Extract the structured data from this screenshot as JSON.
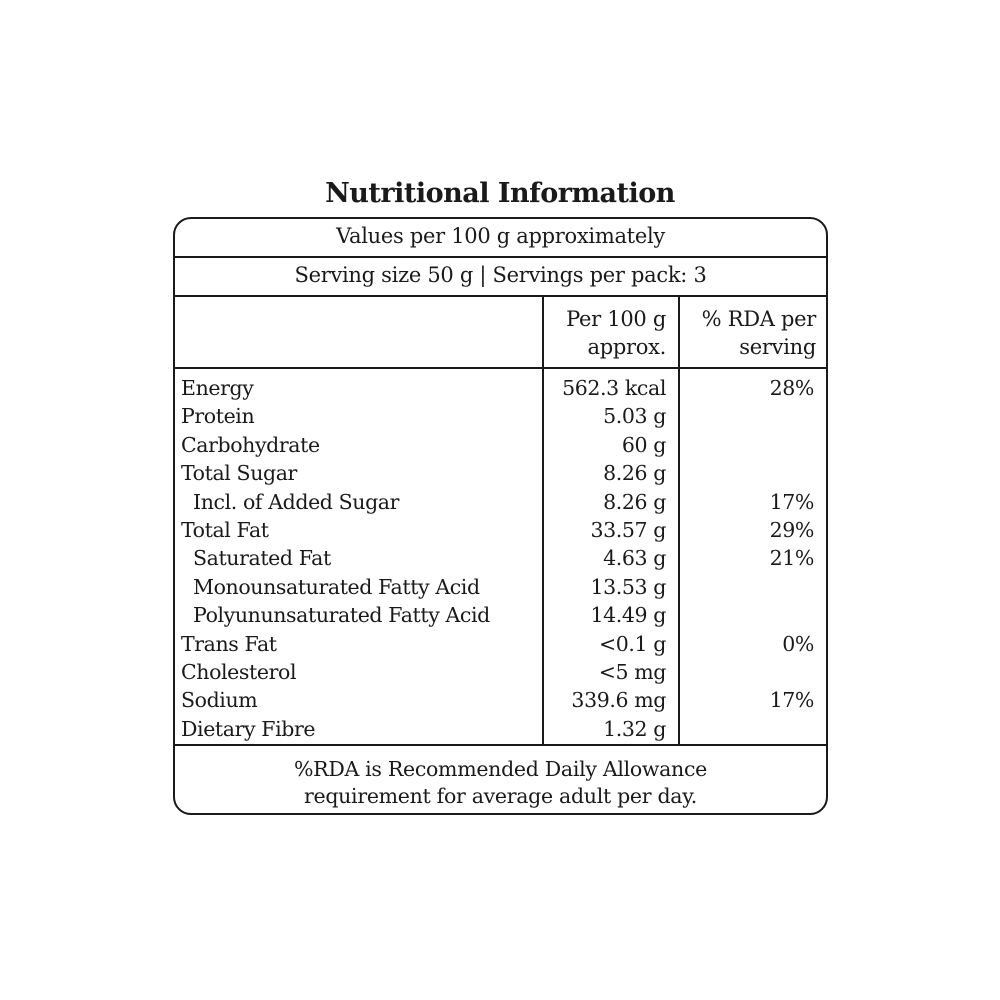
{
  "title": "Nutritional Information",
  "values_note": "Values per 100 g approximately",
  "serving_note": "Serving size 50 g | Servings per pack: 3",
  "columns": {
    "per100_line1": "Per 100 g",
    "per100_line2": "approx.",
    "rda_line1": "% RDA per",
    "rda_line2": "serving"
  },
  "rows": [
    {
      "name": "Energy",
      "value": "562.3 kcal",
      "rda": "28%",
      "indent": false
    },
    {
      "name": "Protein",
      "value": "5.03 g",
      "rda": "",
      "indent": false
    },
    {
      "name": "Carbohydrate",
      "value": "60 g",
      "rda": "",
      "indent": false
    },
    {
      "name": "Total Sugar",
      "value": "8.26 g",
      "rda": "",
      "indent": false
    },
    {
      "name": "Incl. of Added Sugar",
      "value": "8.26 g",
      "rda": "17%",
      "indent": true
    },
    {
      "name": "Total Fat",
      "value": "33.57 g",
      "rda": "29%",
      "indent": false
    },
    {
      "name": "Saturated Fat",
      "value": "4.63 g",
      "rda": "21%",
      "indent": true
    },
    {
      "name": "Monounsaturated Fatty Acid",
      "value": "13.53 g",
      "rda": "",
      "indent": true
    },
    {
      "name": "Polyununsaturated Fatty Acid",
      "value": "14.49 g",
      "rda": "",
      "indent": true
    },
    {
      "name": "Trans Fat",
      "value": "<0.1 g",
      "rda": "0%",
      "indent": false
    },
    {
      "name": "Cholesterol",
      "value": "<5 mg",
      "rda": "",
      "indent": false
    },
    {
      "name": "Sodium",
      "value": "339.6 mg",
      "rda": "17%",
      "indent": false
    },
    {
      "name": "Dietary Fibre",
      "value": "1.32 g",
      "rda": "",
      "indent": false
    }
  ],
  "footer": {
    "line1": "%RDA is Recommended Daily Allowance",
    "line2": "requirement for average adult  per day."
  }
}
